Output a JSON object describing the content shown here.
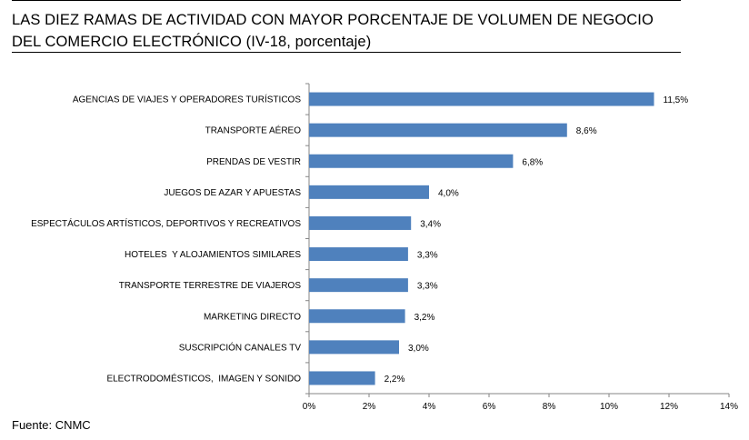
{
  "title": "LAS DIEZ RAMAS DE ACTIVIDAD CON MAYOR PORCENTAJE DE VOLUMEN DE NEGOCIO DEL COMERCIO ELECTRÓNICO (IV-18, porcentaje)",
  "source": "Fuente: CNMC",
  "colors": {
    "bar": "#4f81bd",
    "axis": "#868686",
    "text": "#000000"
  },
  "chart_data": {
    "type": "bar",
    "orientation": "horizontal",
    "title": "LAS DIEZ RAMAS DE ACTIVIDAD CON MAYOR PORCENTAJE DE VOLUMEN DE NEGOCIO DEL COMERCIO ELECTRÓNICO (IV-18, porcentaje)",
    "categories": [
      "AGENCIAS DE VIAJES Y OPERADORES TURÍSTICOS",
      "TRANSPORTE AÉREO",
      "PRENDAS DE VESTIR",
      "JUEGOS DE AZAR Y APUESTAS",
      "ESPECTÁCULOS ARTÍSTICOS, DEPORTIVOS Y RECREATIVOS",
      "HOTELES  Y ALOJAMIENTOS SIMILARES",
      "TRANSPORTE TERRESTRE DE VIAJEROS",
      "MARKETING DIRECTO",
      "SUSCRIPCIÓN CANALES TV",
      "ELECTRODOMÉSTICOS,  IMAGEN Y SONIDO"
    ],
    "values": [
      11.5,
      8.6,
      6.8,
      4.0,
      3.4,
      3.3,
      3.3,
      3.2,
      3.0,
      2.2
    ],
    "value_labels": [
      "11,5%",
      "8,6%",
      "6,8%",
      "4,0%",
      "3,4%",
      "3,3%",
      "3,3%",
      "3,2%",
      "3,0%",
      "2,2%"
    ],
    "xlim": [
      0,
      14
    ],
    "xticks": [
      0,
      2,
      4,
      6,
      8,
      10,
      12,
      14
    ],
    "xtick_labels": [
      "0%",
      "2%",
      "4%",
      "6%",
      "8%",
      "10%",
      "12%",
      "14%"
    ],
    "xlabel": "",
    "ylabel": "",
    "grid": false,
    "legend": "none"
  }
}
